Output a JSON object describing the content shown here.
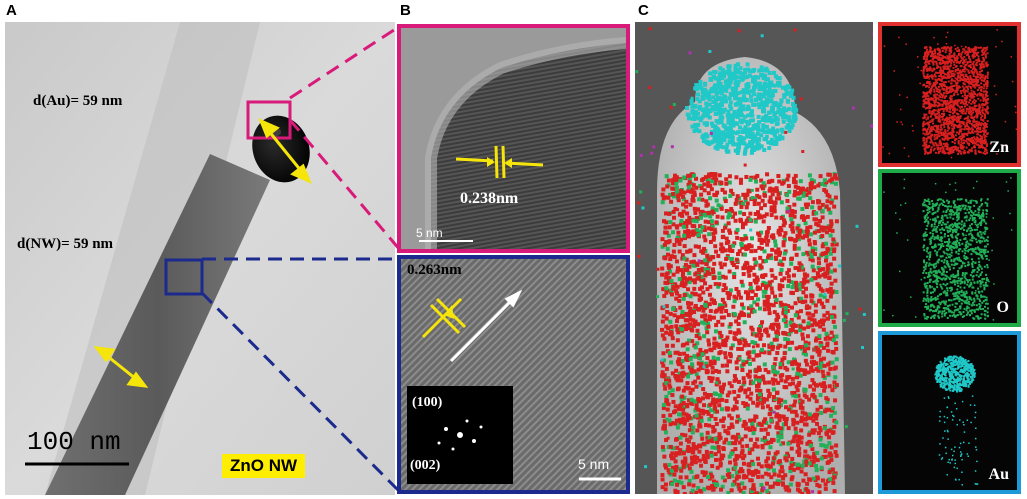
{
  "panels": {
    "a": {
      "letter": "A",
      "d_au": "d(Au)= 59 nm",
      "d_nw": "d(NW)= 59 nm",
      "scale_bar": "100 nm",
      "material_label": "ZnO NW"
    },
    "b": {
      "letter": "B",
      "top": {
        "spacing": "0.238nm",
        "scale_bar": "5 nm"
      },
      "bottom": {
        "spacing": "0.263nm",
        "fft_label_1": "(100)",
        "fft_label_2": "(002)",
        "scale_bar": "5 nm"
      }
    },
    "c": {
      "letter": "C",
      "maps": [
        {
          "element": "Zn",
          "frame_color": "#e03030",
          "dot_color": "#d82020"
        },
        {
          "element": "O",
          "frame_color": "#1faa4a",
          "dot_color": "#22b058"
        },
        {
          "element": "Au",
          "frame_color": "#1e9ad8",
          "dot_color": "#20c8c8"
        }
      ]
    }
  },
  "colors": {
    "magenta_box": "#d81b7a",
    "navy_box": "#1b2a8c",
    "yellow_arrow": "#f5e50a",
    "label_bg": "#ffee00"
  }
}
